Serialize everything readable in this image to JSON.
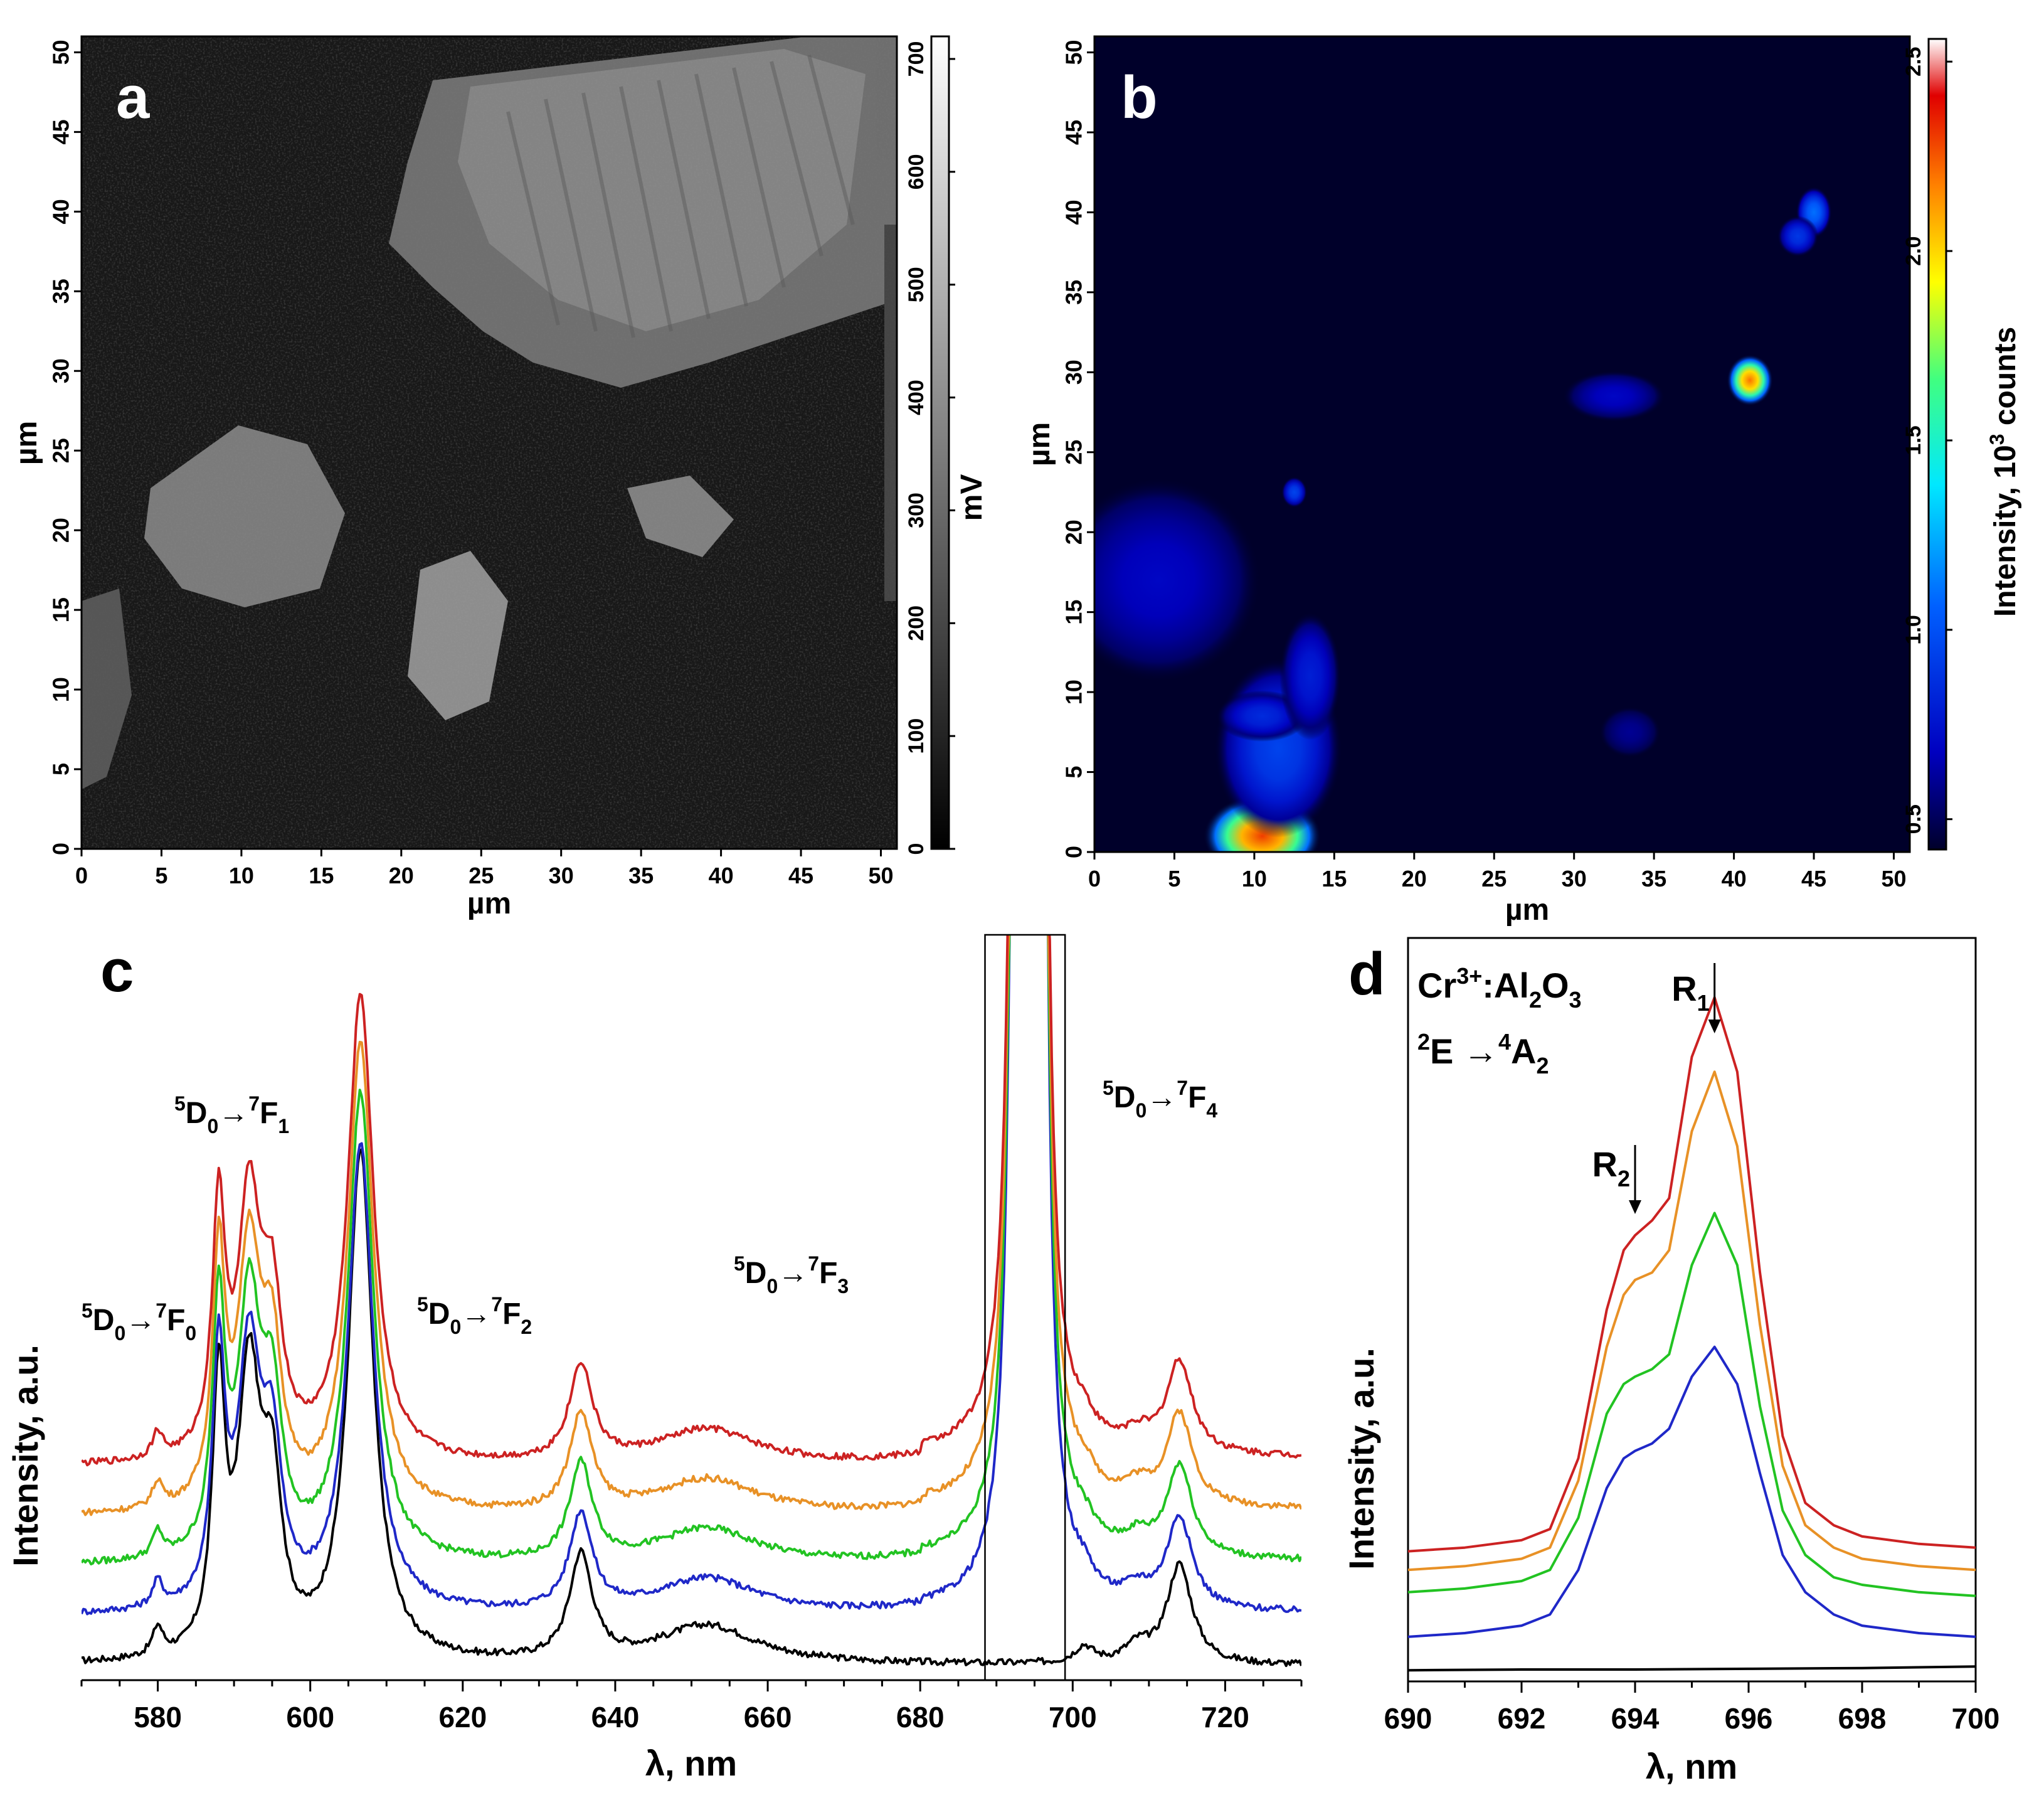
{
  "chart_data": [
    {
      "type": "heatmap",
      "panel": "a",
      "xlabel": "µm",
      "ylabel": "µm",
      "xlim": [
        0,
        51
      ],
      "ylim": [
        0,
        51
      ],
      "xticks": [
        "0",
        "5",
        "10",
        "15",
        "20",
        "25",
        "30",
        "35",
        "40",
        "45",
        "50"
      ],
      "yticks": [
        "0",
        "5",
        "10",
        "15",
        "20",
        "25",
        "30",
        "35",
        "40",
        "45",
        "50"
      ],
      "colorbar": {
        "label": "mV",
        "range": [
          0,
          720
        ],
        "ticks": [
          "0",
          "100",
          "200",
          "300",
          "400",
          "500",
          "600",
          "700"
        ],
        "colormap": "grayscale"
      },
      "colors": {
        "background": "#1c1c1c",
        "bright": "#b4b4b4"
      }
    },
    {
      "type": "heatmap",
      "panel": "b",
      "xlabel": "µm",
      "ylabel": "µm",
      "xlim": [
        0,
        51
      ],
      "ylim": [
        0,
        51
      ],
      "xticks": [
        "0",
        "5",
        "10",
        "15",
        "20",
        "25",
        "30",
        "35",
        "40",
        "45",
        "50"
      ],
      "yticks": [
        "0",
        "5",
        "10",
        "15",
        "20",
        "25",
        "30",
        "35",
        "40",
        "45",
        "50"
      ],
      "colorbar": {
        "label_main": "Intensity, 10",
        "label_sup": "3",
        "label_tail": " counts",
        "range": [
          0.42,
          2.56
        ],
        "ticks": [
          "0.5",
          "1.0",
          "1.5",
          "2.0",
          "2.5"
        ],
        "colormap": "jet"
      },
      "hotspots": [
        {
          "x": 10.5,
          "y": 1.0,
          "intensity": 2.3,
          "sx": 2.3,
          "sy": 1.6
        },
        {
          "x": 11.5,
          "y": 6.5,
          "intensity": 0.95,
          "sx": 2.5,
          "sy": 3.5
        },
        {
          "x": 10.5,
          "y": 8.5,
          "intensity": 0.85,
          "sx": 1.8,
          "sy": 1.0
        },
        {
          "x": 13.5,
          "y": 11.0,
          "intensity": 0.8,
          "sx": 1.2,
          "sy": 2.5
        },
        {
          "x": 4.0,
          "y": 17.0,
          "intensity": 0.7,
          "sx": 4.0,
          "sy": 4.0
        },
        {
          "x": 12.5,
          "y": 22.5,
          "intensity": 0.95,
          "sx": 0.5,
          "sy": 0.6
        },
        {
          "x": 41.0,
          "y": 29.5,
          "intensity": 2.2,
          "sx": 0.9,
          "sy": 1.0
        },
        {
          "x": 45.0,
          "y": 40.0,
          "intensity": 1.1,
          "sx": 0.7,
          "sy": 1.0
        },
        {
          "x": 44.0,
          "y": 38.5,
          "intensity": 0.9,
          "sx": 0.8,
          "sy": 0.8
        },
        {
          "x": 32.5,
          "y": 28.5,
          "intensity": 0.7,
          "sx": 2.0,
          "sy": 1.0
        },
        {
          "x": 33.5,
          "y": 7.5,
          "intensity": 0.6,
          "sx": 1.2,
          "sy": 1.0
        }
      ]
    },
    {
      "type": "line",
      "panel": "c",
      "xlabel": "λ, nm",
      "ylabel": "Intensity, a.u.",
      "xlim": [
        570,
        730
      ],
      "ylim": [
        0,
        1
      ],
      "xticks": [
        580,
        600,
        620,
        640,
        660,
        680,
        700,
        720
      ],
      "inset_box": [
        688.5,
        699
      ],
      "annotations": [
        {
          "pre": "5",
          "main": "D",
          "sub": "0",
          "arrow": "→",
          "pre2": "7",
          "main2": "F",
          "sub2": "0"
        },
        {
          "pre": "5",
          "main": "D",
          "sub": "0",
          "arrow": "→",
          "pre2": "7",
          "main2": "F",
          "sub2": "1"
        },
        {
          "pre": "5",
          "main": "D",
          "sub": "0",
          "arrow": "→",
          "pre2": "7",
          "main2": "F",
          "sub2": "2"
        },
        {
          "pre": "5",
          "main": "D",
          "sub": "0",
          "arrow": "→",
          "pre2": "7",
          "main2": "F",
          "sub2": "3"
        },
        {
          "pre": "5",
          "main": "D",
          "sub": "0",
          "arrow": "→",
          "pre2": "7",
          "main2": "F",
          "sub2": "4"
        }
      ],
      "series": [
        {
          "color": "#000000",
          "offset": 0.0,
          "scale": 1.0,
          "cr": 0.0
        },
        {
          "color": "#1f28c8",
          "offset": 0.09,
          "scale": 0.92,
          "cr": 1.0
        },
        {
          "color": "#22c322",
          "offset": 0.18,
          "scale": 0.92,
          "cr": 1.0
        },
        {
          "color": "#e89126",
          "offset": 0.27,
          "scale": 0.92,
          "cr": 1.0
        },
        {
          "color": "#cc2222",
          "offset": 0.36,
          "scale": 0.92,
          "cr": 1.0
        }
      ],
      "peaks": [
        {
          "center": 580.0,
          "height": 0.05,
          "width": 0.8
        },
        {
          "center": 588.0,
          "height": 0.48,
          "width": 1.0
        },
        {
          "center": 592.0,
          "height": 0.5,
          "width": 1.8
        },
        {
          "center": 595.0,
          "height": 0.28,
          "width": 1.5
        },
        {
          "center": 606.6,
          "height": 0.92,
          "width": 2.0
        },
        {
          "center": 635.5,
          "height": 0.19,
          "width": 1.8
        },
        {
          "center": 652.0,
          "height": 0.07,
          "width": 8.0
        },
        {
          "center": 701.5,
          "height": 0.03,
          "width": 1.5
        },
        {
          "center": 708.5,
          "height": 0.03,
          "width": 2.0
        },
        {
          "center": 714.0,
          "height": 0.18,
          "width": 2.0
        }
      ],
      "baseline": 0.01
    },
    {
      "type": "line",
      "panel": "d",
      "xlabel": "λ, nm",
      "ylabel": "Intensity, a.u.",
      "xlim": [
        690,
        700
      ],
      "ylim": [
        0,
        1
      ],
      "xticks": [
        690,
        692,
        694,
        696,
        698,
        700
      ],
      "annotations": {
        "species": {
          "main": "Cr",
          "sup": "3+",
          "mid": ":Al",
          "sub1": "2",
          "o": "O",
          "sub2": "3",
          "color": "#cc2222"
        },
        "transition": {
          "pre": "2",
          "main": "E",
          "arrow": " →",
          "pre2": "4",
          "main2": "A",
          "sub": "2"
        },
        "R1": {
          "main": "R",
          "sub": "1",
          "x": 695.4
        },
        "R2": {
          "main": "R",
          "sub": "2",
          "x": 694.0
        }
      },
      "series": [
        {
          "color": "#000000",
          "x": [
            690,
            692,
            694,
            696,
            698,
            700
          ],
          "y": [
            0.015,
            0.016,
            0.016,
            0.017,
            0.018,
            0.02
          ]
        },
        {
          "color": "#1f28c8",
          "x": [
            690,
            691,
            692,
            692.5,
            693,
            693.5,
            693.8,
            694,
            694.3,
            694.6,
            695,
            695.4,
            695.8,
            696.2,
            696.6,
            697,
            697.5,
            698,
            699,
            700
          ],
          "y": [
            0.06,
            0.065,
            0.075,
            0.09,
            0.15,
            0.26,
            0.3,
            0.31,
            0.32,
            0.34,
            0.41,
            0.45,
            0.4,
            0.28,
            0.17,
            0.12,
            0.09,
            0.075,
            0.065,
            0.06
          ]
        },
        {
          "color": "#22c322",
          "x": [
            690,
            691,
            692,
            692.5,
            693,
            693.5,
            693.8,
            694,
            694.3,
            694.6,
            695,
            695.4,
            695.8,
            696.2,
            696.6,
            697,
            697.5,
            698,
            699,
            700
          ],
          "y": [
            0.12,
            0.125,
            0.135,
            0.15,
            0.22,
            0.36,
            0.4,
            0.41,
            0.42,
            0.44,
            0.56,
            0.63,
            0.56,
            0.37,
            0.23,
            0.17,
            0.14,
            0.13,
            0.12,
            0.115
          ]
        },
        {
          "color": "#e89126",
          "x": [
            690,
            691,
            692,
            692.5,
            693,
            693.5,
            693.8,
            694,
            694.3,
            694.6,
            695,
            695.4,
            695.8,
            696.2,
            696.6,
            697,
            697.5,
            698,
            699,
            700
          ],
          "y": [
            0.15,
            0.155,
            0.165,
            0.18,
            0.27,
            0.45,
            0.52,
            0.54,
            0.55,
            0.58,
            0.74,
            0.82,
            0.72,
            0.48,
            0.29,
            0.21,
            0.18,
            0.165,
            0.155,
            0.15
          ]
        },
        {
          "color": "#cc2222",
          "x": [
            690,
            691,
            692,
            692.5,
            693,
            693.5,
            693.8,
            694,
            694.3,
            694.6,
            695,
            695.4,
            695.8,
            696.2,
            696.6,
            697,
            697.5,
            698,
            699,
            700
          ],
          "y": [
            0.175,
            0.18,
            0.19,
            0.205,
            0.3,
            0.5,
            0.58,
            0.6,
            0.62,
            0.65,
            0.84,
            0.92,
            0.82,
            0.55,
            0.33,
            0.24,
            0.21,
            0.195,
            0.185,
            0.18
          ]
        }
      ]
    }
  ],
  "panel_letters": [
    "a",
    "b",
    "c",
    "d"
  ]
}
